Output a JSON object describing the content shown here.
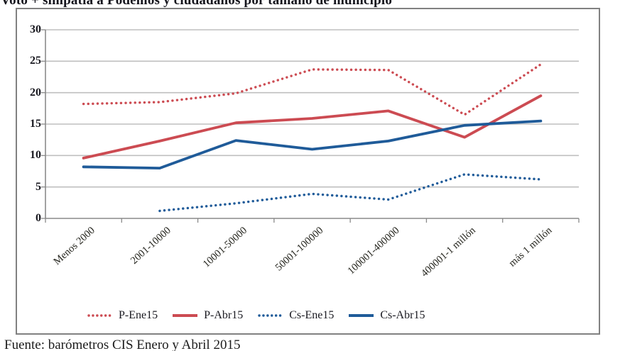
{
  "title": "Voto + simpatía a Podemos y ciudadanos por tamaño de municipio",
  "source_note": "Fuente: barómetros CIS Enero y Abril 2015",
  "colors": {
    "podemos_red": "#CC4B52",
    "ciudadanos_blue": "#1F5B99",
    "gridline": "#BFBFBF",
    "axis": "#8A8A8A",
    "box_border": "#818181"
  },
  "chart_data": {
    "type": "line",
    "title": "Voto + simpatía a Podemos y ciudadanos por tamaño de municipio",
    "categories": [
      "Menos 2000",
      "2001-10000",
      "10001-50000",
      "50001-100000",
      "100001-400000",
      "400001-1 millón",
      "más 1 millón"
    ],
    "series": [
      {
        "name": "P-Ene15",
        "color": "#CC4B52",
        "style": "dotted",
        "values": [
          18.2,
          18.5,
          19.9,
          23.7,
          23.6,
          16.5,
          24.5
        ]
      },
      {
        "name": "P-Abr15",
        "color": "#CC4B52",
        "style": "solid",
        "values": [
          9.6,
          12.3,
          15.2,
          15.9,
          17.1,
          12.9,
          19.5
        ]
      },
      {
        "name": "Cs-Ene15",
        "color": "#1F5B99",
        "style": "dotted",
        "values": [
          null,
          1.2,
          2.4,
          3.9,
          3.0,
          7.0,
          6.2
        ]
      },
      {
        "name": "Cs-Abr15",
        "color": "#1F5B99",
        "style": "solid",
        "values": [
          8.2,
          8.0,
          12.4,
          11.0,
          12.3,
          14.8,
          15.5
        ]
      }
    ],
    "xlabel": "",
    "ylabel": "",
    "ylim": [
      0,
      30
    ],
    "yticks": [
      0,
      5,
      10,
      15,
      20,
      25,
      30
    ],
    "grid": true,
    "legend_position": "bottom"
  }
}
